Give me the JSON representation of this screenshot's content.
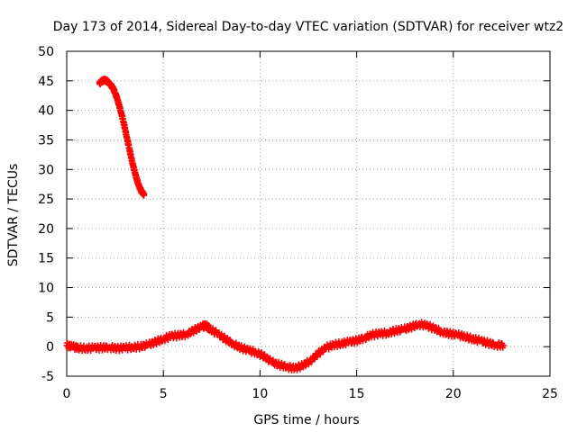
{
  "chart_data": {
    "type": "scatter",
    "title": "Day 173 of 2014, Sidereal Day-to-day VTEC variation (SDTVAR) for receiver wtz2",
    "xlabel": "GPS time / hours",
    "ylabel": "SDTVAR / TECUs",
    "xlim": [
      0,
      25
    ],
    "ylim": [
      -5,
      50
    ],
    "xticks": [
      0,
      5,
      10,
      15,
      20,
      25
    ],
    "yticks": [
      -5,
      0,
      5,
      10,
      15,
      20,
      25,
      30,
      35,
      40,
      45,
      50
    ],
    "grid": true,
    "marker": "plus",
    "series": [
      {
        "name": "SDTVAR high segment",
        "color": "#ff0000",
        "x": [
          1.7,
          1.8,
          1.9,
          2.0,
          2.1,
          2.2,
          2.3,
          2.4,
          2.5,
          2.6,
          2.7,
          2.8,
          2.9,
          3.0,
          3.1,
          3.2,
          3.3,
          3.4,
          3.5,
          3.6,
          3.7,
          3.8,
          3.9,
          4.0
        ],
        "y": [
          44.6,
          44.9,
          45.1,
          45.1,
          44.9,
          44.6,
          44.2,
          43.7,
          43.0,
          42.1,
          41.0,
          39.8,
          38.5,
          37.1,
          35.6,
          34.1,
          32.6,
          31.1,
          29.8,
          28.6,
          27.6,
          26.7,
          26.1,
          25.8
        ]
      },
      {
        "name": "SDTVAR low segment",
        "color": "#ff0000",
        "x": [
          0.0,
          0.3,
          0.6,
          1.0,
          1.4,
          1.8,
          2.2,
          2.6,
          3.0,
          3.4,
          3.8,
          4.2,
          4.6,
          5.0,
          5.4,
          5.8,
          6.2,
          6.6,
          7.0,
          7.2,
          7.4,
          7.8,
          8.2,
          8.6,
          9.0,
          9.4,
          9.8,
          10.2,
          10.6,
          11.0,
          11.4,
          11.8,
          12.2,
          12.6,
          13.0,
          13.4,
          13.8,
          14.2,
          14.6,
          15.0,
          15.4,
          15.8,
          16.2,
          16.6,
          17.0,
          17.4,
          17.8,
          18.2,
          18.6,
          19.0,
          19.4,
          19.8,
          20.2,
          20.6,
          21.0,
          21.4,
          21.8,
          22.2,
          22.6
        ],
        "y": [
          0.2,
          0.0,
          -0.2,
          -0.3,
          -0.2,
          -0.2,
          -0.1,
          -0.3,
          -0.2,
          -0.1,
          0.0,
          0.3,
          0.8,
          1.3,
          1.8,
          1.9,
          2.1,
          2.8,
          3.4,
          3.6,
          3.0,
          2.2,
          1.3,
          0.5,
          -0.2,
          -0.6,
          -1.0,
          -1.6,
          -2.6,
          -3.1,
          -3.4,
          -3.7,
          -3.2,
          -2.4,
          -1.2,
          -0.2,
          0.3,
          0.5,
          0.8,
          1.0,
          1.5,
          2.0,
          2.2,
          2.3,
          2.7,
          2.9,
          3.3,
          3.8,
          3.6,
          3.1,
          2.5,
          2.2,
          2.0,
          1.7,
          1.3,
          1.0,
          0.6,
          0.3,
          0.2
        ]
      }
    ]
  }
}
